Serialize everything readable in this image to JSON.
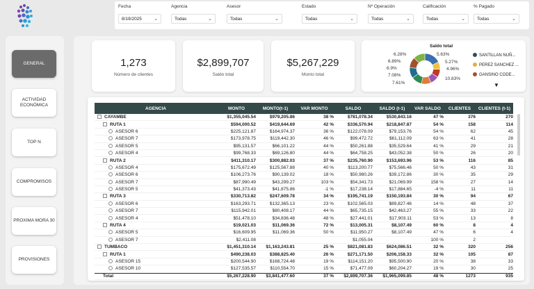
{
  "filters": [
    {
      "label": "Fecha",
      "value": "8/19/2025"
    },
    {
      "label": "Agencia",
      "value": "Todas"
    },
    {
      "label": "Asesor",
      "value": "Todas"
    },
    {
      "label": "Estado",
      "value": "Todas"
    },
    {
      "label": "Nº Operación",
      "value": "Todas"
    },
    {
      "label": "Calificación",
      "value": "Todas"
    },
    {
      "label": "% Pagado",
      "value": "Todas"
    }
  ],
  "nav": [
    {
      "label": "GENERAL",
      "active": true
    },
    {
      "label": "ACTIVIDAD ECONÓMICA",
      "active": false
    },
    {
      "label": "TOP N",
      "active": false
    },
    {
      "label": "COMPROMISOS",
      "active": false
    },
    {
      "label": "PROXIMA MORA 30",
      "active": false
    },
    {
      "label": "PROVISIONES",
      "active": false
    }
  ],
  "kpis": [
    {
      "value": "1,273",
      "label": "Número de clientes"
    },
    {
      "value": "$2,899,707",
      "label": "Saldo total"
    },
    {
      "value": "$5,267,229",
      "label": "Monto total"
    }
  ],
  "donut": {
    "title": "Saldo total",
    "slices": [
      {
        "label": "6.28%",
        "value": 6.28,
        "color": "#e07b39"
      },
      {
        "label": "6.89%",
        "value": 6.89,
        "color": "#2e8b57"
      },
      {
        "label": "6.9%",
        "value": 6.9,
        "color": "#1f6f8b"
      },
      {
        "label": "7.08%",
        "value": 7.08,
        "color": "#a0522d"
      },
      {
        "label": "7.61%",
        "value": 7.61,
        "color": "#7cb342"
      },
      {
        "label": "10.83%",
        "value": 10.83,
        "color": "#3a6fb0"
      },
      {
        "label": "4.96%",
        "value": 4.96,
        "color": "#f0c040"
      },
      {
        "label": "5.27%",
        "value": 5.27,
        "color": "#c0392b"
      },
      {
        "label": "5.63%",
        "value": 5.63,
        "color": "#9b59b6"
      }
    ],
    "legend": [
      {
        "label": "SANTILLAN NUÑ...",
        "color": "#34495e"
      },
      {
        "label": "PEREZ SANCHEZ ...",
        "color": "#e0b040"
      },
      {
        "label": "GANSINO CODE...",
        "color": "#a0522d"
      }
    ]
  },
  "table": {
    "headers": [
      "AGENCIA",
      "MONTO",
      "MONTO(t-1)",
      "VAR MONTO",
      "SALDO",
      "SALDO (t-1)",
      "VAR SALDO",
      "CLIENTES",
      "CLIENTES (t-1)"
    ],
    "rows": [
      {
        "level": 0,
        "cells": [
          "CAYAMBE",
          "$1,355,045.54",
          "$979,205.86",
          "38 %",
          "$781,078.34",
          "$530,843.16",
          "47 %",
          "376",
          "270"
        ]
      },
      {
        "level": 1,
        "cells": [
          "RUTA 1",
          "$594,000.52",
          "$419,644.69",
          "42 %",
          "$336,570.94",
          "$218,847.87",
          "54 %",
          "158",
          "114"
        ]
      },
      {
        "level": 2,
        "cells": [
          "ASESOR 6",
          "$225,121.87",
          "$164,974.37",
          "36 %",
          "$122,078.09",
          "$79,153.76",
          "54 %",
          "62",
          "45"
        ]
      },
      {
        "level": 2,
        "cells": [
          "ASESOR 7",
          "$173,978.75",
          "$119,442.30",
          "46 %",
          "$99,472.72",
          "$61,112.09",
          "63 %",
          "41",
          "28"
        ]
      },
      {
        "level": 2,
        "cells": [
          "ASESOR 5",
          "$95,131.57",
          "$66,101.22",
          "44 %",
          "$50,261.88",
          "$35,529.64",
          "41 %",
          "29",
          "21"
        ]
      },
      {
        "level": 2,
        "cells": [
          "ASESOR 4",
          "$99,768.33",
          "$69,126.80",
          "44 %",
          "$64,758.25",
          "$43,052.38",
          "50 %",
          "26",
          "20"
        ]
      },
      {
        "level": 1,
        "cells": [
          "RUTA 2",
          "$411,310.17",
          "$300,882.03",
          "37 %",
          "$235,760.90",
          "$153,693.96",
          "53 %",
          "116",
          "85"
        ]
      },
      {
        "level": 2,
        "cells": [
          "ASESOR 4",
          "$175,672.49",
          "$125,567.88",
          "40 %",
          "$113,200.77",
          "$75,566.46",
          "50 %",
          "43",
          "31"
        ]
      },
      {
        "level": 2,
        "cells": [
          "ASESOR 6",
          "$106,273.76",
          "$90,139.02",
          "18 %",
          "$50,980.26",
          "$39,172.86",
          "30 %",
          "35",
          "29"
        ]
      },
      {
        "level": 2,
        "cells": [
          "ASESOR 7",
          "$87,990.49",
          "$43,299.27",
          "103 %",
          "$54,341.73",
          "$21,069.99",
          "158 %",
          "27",
          "14"
        ]
      },
      {
        "level": 2,
        "cells": [
          "ASESOR 5",
          "$41,373.43",
          "$41,875.86",
          "-1 %",
          "$17,238.14",
          "$17,884.65",
          "-4 %",
          "11",
          "11"
        ]
      },
      {
        "level": 1,
        "cells": [
          "RUTA 3",
          "$330,713.82",
          "$247,609.78",
          "34 %",
          "$195,741.19",
          "$150,193.84",
          "30 %",
          "94",
          "67"
        ]
      },
      {
        "level": 2,
        "cells": [
          "ASESOR 6",
          "$163,293.71",
          "$132,365.13",
          "23 %",
          "$102,565.03",
          "$89,827.46",
          "14 %",
          "48",
          "37"
        ]
      },
      {
        "level": 2,
        "cells": [
          "ASESOR 7",
          "$115,942.01",
          "$80,408.17",
          "44 %",
          "$65,735.15",
          "$42,463.27",
          "55 %",
          "33",
          "22"
        ]
      },
      {
        "level": 2,
        "cells": [
          "ASESOR 4",
          "$51,478.10",
          "$34,836.48",
          "48 %",
          "$27,441.01",
          "$17,903.11",
          "53 %",
          "13",
          "8"
        ]
      },
      {
        "level": 1,
        "cells": [
          "RUTA 4",
          "$19,021.03",
          "$11,069.36",
          "72 %",
          "$13,005.31",
          "$8,107.49",
          "60 %",
          "8",
          "4"
        ]
      },
      {
        "level": 2,
        "cells": [
          "ASESOR 5",
          "$16,609.95",
          "$11,069.36",
          "50 %",
          "$11,950.27",
          "$8,107.49",
          "47 %",
          "6",
          "4"
        ]
      },
      {
        "level": 2,
        "cells": [
          "ASESOR 7",
          "$2,411.08",
          "",
          "",
          "$1,055.04",
          "",
          "100 %",
          "2",
          ""
        ]
      },
      {
        "level": 0,
        "cells": [
          "TUMBACO",
          "$1,451,310.14",
          "$1,163,243.81",
          "25 %",
          "$821,081.83",
          "$624,086.51",
          "32 %",
          "320",
          "256"
        ]
      },
      {
        "level": 1,
        "cells": [
          "RUTA 1",
          "$490,238.03",
          "$388,825.40",
          "26 %",
          "$271,171.50",
          "$206,158.33",
          "32 %",
          "105",
          "87"
        ]
      },
      {
        "level": 2,
        "cells": [
          "ASESOR 15",
          "$200,544.90",
          "$168,724.48",
          "19 %",
          "$114,151.20",
          "$95,500.90",
          "20 %",
          "38",
          "33"
        ]
      },
      {
        "level": 2,
        "cells": [
          "ASESOR 10",
          "$127,535.57",
          "$110,554.70",
          "15 %",
          "$71,477.09",
          "$60,204.27",
          "19 %",
          "30",
          "25"
        ]
      }
    ],
    "total": [
      "Total",
      "$5,267,228.90",
      "$3,841,477.60",
      "37 %",
      "$2,899,707.36",
      "$1,965,099.85",
      "48 %",
      "1273",
      "935"
    ]
  }
}
